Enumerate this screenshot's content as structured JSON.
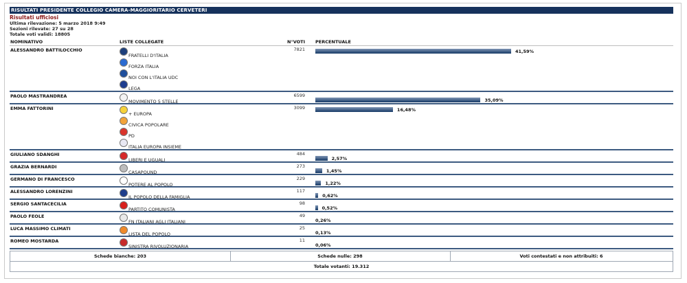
{
  "header": {
    "title": "RISULTATI PRESIDENTE COLLEGIO CAMERA-MAGGIORITARIO CERVETERI",
    "official": "Risultati ufficiosi",
    "last_update": "Ultima rilevazione: 5 marzo 2018 9:49",
    "sections": "Sezioni rilevate: 27 su 28",
    "total_valid": "Totale voti validi: 18805"
  },
  "columns": {
    "name": "NOMINATIVO",
    "lists": "LISTE COLLEGATE",
    "votes": "N°VOTI",
    "percent": "PERCENTUALE"
  },
  "colors": {
    "titlebar": "#16325c",
    "bar": "#163a66",
    "separator": "#3c5a80",
    "official": "#8b1a1a"
  },
  "candidates": [
    {
      "name": "ALESSANDRO BATTILOCCHIO",
      "votes": "7821",
      "percent_label": "41,59%",
      "percent": 41.59,
      "lists": [
        {
          "label": "FRATELLI D'ITALIA",
          "logo": "fratelli-italia-icon",
          "color": "#1d3f7a"
        },
        {
          "label": "FORZA ITALIA",
          "logo": "forza-italia-icon",
          "color": "#2a6ad1"
        },
        {
          "label": "NOI CON L'ITALIA UDC",
          "logo": "noi-con-italia-icon",
          "color": "#1f4f9c"
        },
        {
          "label": "LEGA",
          "logo": "lega-icon",
          "color": "#1e3d8f"
        }
      ]
    },
    {
      "name": "PAOLO MASTRANDREA",
      "votes": "6599",
      "percent_label": "35,09%",
      "percent": 35.09,
      "lists": [
        {
          "label": "MOVIMENTO 5 STELLE",
          "logo": "movimento-5-stelle-icon",
          "color": "#f3f3f3"
        }
      ]
    },
    {
      "name": "EMMA FATTORINI",
      "votes": "3099",
      "percent_label": "16,48%",
      "percent": 16.48,
      "lists": [
        {
          "label": "+ EUROPA",
          "logo": "piu-europa-icon",
          "color": "#f6d23a"
        },
        {
          "label": "CIVICA POPOLARE",
          "logo": "civica-popolare-icon",
          "color": "#f2a33a"
        },
        {
          "label": "PD",
          "logo": "pd-icon",
          "color": "#d9342b"
        },
        {
          "label": "ITALIA EUROPA INSIEME",
          "logo": "italia-europa-insieme-icon",
          "color": "#e8e8f4"
        }
      ]
    },
    {
      "name": "GIULIANO SDANGHI",
      "votes": "484",
      "percent_label": "2,57%",
      "percent": 2.57,
      "lists": [
        {
          "label": "LIBERI E UGUALI",
          "logo": "liberi-uguali-icon",
          "color": "#d62828"
        }
      ]
    },
    {
      "name": "GRAZIA BERNARDI",
      "votes": "273",
      "percent_label": "1,45%",
      "percent": 1.45,
      "lists": [
        {
          "label": "CASAPOUND",
          "logo": "casapound-icon",
          "color": "#bdbdbd"
        }
      ]
    },
    {
      "name": "GERMANO DI FRANCESCO",
      "votes": "229",
      "percent_label": "1,22%",
      "percent": 1.22,
      "lists": [
        {
          "label": "POTERE AL POPOLO",
          "logo": "potere-al-popolo-icon",
          "color": "#ffffff"
        }
      ]
    },
    {
      "name": "ALESSANDRO LORENZINI",
      "votes": "117",
      "percent_label": "0,62%",
      "percent": 0.62,
      "lists": [
        {
          "label": "IL POPOLO DELLA FAMIGLIA",
          "logo": "popolo-famiglia-icon",
          "color": "#1f3e8c"
        }
      ]
    },
    {
      "name": "SERGIO SANTACECILIA",
      "votes": "98",
      "percent_label": "0,52%",
      "percent": 0.52,
      "lists": [
        {
          "label": "PARTITO COMUNISTA",
          "logo": "partito-comunista-icon",
          "color": "#d8201c"
        }
      ]
    },
    {
      "name": "PAOLO FEOLE",
      "votes": "49",
      "percent_label": "0,26%",
      "percent": 0.26,
      "lists": [
        {
          "label": "FN ITALIANI AGLI ITALIANI",
          "logo": "forza-nuova-icon",
          "color": "#e9e9e9"
        }
      ]
    },
    {
      "name": "LUCA MASSIMO CLIMATI",
      "votes": "25",
      "percent_label": "0,13%",
      "percent": 0.13,
      "lists": [
        {
          "label": "LISTA DEL POPOLO",
          "logo": "lista-del-popolo-icon",
          "color": "#f08a2a"
        }
      ]
    },
    {
      "name": "ROMEO MOSTARDA",
      "votes": "11",
      "percent_label": "0,06%",
      "percent": 0.06,
      "lists": [
        {
          "label": "SINISTRA RIVOLUZIONARIA",
          "logo": "sinistra-rivoluzionaria-icon",
          "color": "#c72b2b"
        }
      ]
    }
  ],
  "footer": {
    "blank": "Schede bianche: 203",
    "null": "Schede nulle: 298",
    "contested": "Voti contestati e non attribuiti: 6",
    "total_voters": "Totale votanti: 19.312"
  }
}
